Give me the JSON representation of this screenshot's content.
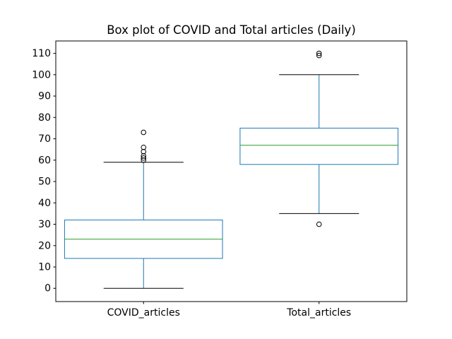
{
  "figure": {
    "background": "#ffffff"
  },
  "chart_data": {
    "type": "box",
    "title": "Box plot of COVID and Total articles (Daily)",
    "categories": [
      "COVID_articles",
      "Total_articles"
    ],
    "series": [
      {
        "name": "COVID_articles",
        "whisker_low": 0,
        "q1": 14,
        "median": 23,
        "q3": 32,
        "whisker_high": 59,
        "outliers": [
          60,
          61,
          62,
          64,
          66,
          73
        ]
      },
      {
        "name": "Total_articles",
        "whisker_low": 35,
        "q1": 58,
        "median": 67,
        "q3": 75,
        "whisker_high": 100,
        "outliers": [
          30,
          109,
          110
        ]
      }
    ],
    "y_ticks": [
      0,
      10,
      20,
      30,
      40,
      50,
      60,
      70,
      80,
      90,
      100,
      110
    ],
    "ylim": [
      -6.2,
      115.8
    ],
    "xlim": [
      0.5,
      2.5
    ],
    "positions": [
      1,
      2
    ],
    "box_width": 0.9,
    "cap_width": 0.455,
    "grid": false,
    "legend": "none",
    "xlabel": "",
    "ylabel": "",
    "colors": {
      "box": "#1f77b4",
      "whisker": "#1f77b4",
      "cap": "#000000",
      "median": "#2ca02c",
      "flier": "#000000",
      "spine": "#000000",
      "text": "#000000"
    }
  }
}
